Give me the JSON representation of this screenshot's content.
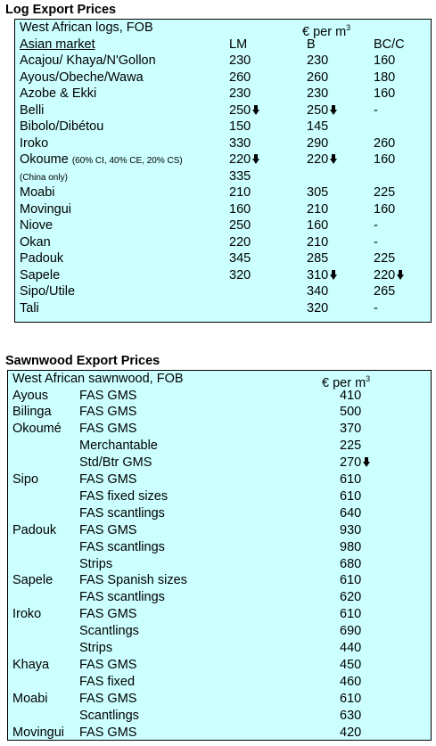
{
  "log_section": {
    "title": "Log Export Prices",
    "header": {
      "label": "West African logs, FOB",
      "unit": "€ per m",
      "unit_sup": "3"
    },
    "subheader": {
      "market": "Asian market",
      "col_lm": "LM",
      "col_b": "B",
      "col_bcc": "BC/C"
    },
    "rows": [
      {
        "name": "Acajou/ Khaya/N'Gollon",
        "lm": "230",
        "b": "230",
        "bcc": "160"
      },
      {
        "name": "Ayous/Obeche/Wawa",
        "lm": "260",
        "b": "260",
        "bcc": "180"
      },
      {
        "name": "Azobe & Ekki",
        "lm": "230",
        "b": "230",
        "bcc": "160"
      },
      {
        "name": "Belli",
        "lm": "250",
        "lm_arrow": "down-arrow-icon",
        "b": "250",
        "b_arrow": "down-arrow-icon",
        "bcc": "-"
      },
      {
        "name": "Bibolo/Dibétou",
        "lm": "150",
        "b": "145",
        "bcc": ""
      },
      {
        "name": "Iroko",
        "lm": "330",
        "b": "290",
        "bcc": "260"
      },
      {
        "name": "Okoume",
        "note": "(60% CI, 40% CE, 20% CS)",
        "lm": "220",
        "lm_arrow": "down-arrow-icon",
        "b": "220",
        "b_arrow": "down-arrow-icon",
        "bcc": "160"
      },
      {
        "name": "",
        "note": "(China only)",
        "lm": "335",
        "b": "",
        "bcc": ""
      },
      {
        "name": "Moabi",
        "lm": "210",
        "b": "305",
        "bcc": "225"
      },
      {
        "name": "Movingui",
        "lm": "160",
        "b": "210",
        "bcc": "160"
      },
      {
        "name": "Niove",
        "lm": "250",
        "b": "160",
        "bcc": "-"
      },
      {
        "name": "Okan",
        "lm": "220",
        "b": "210",
        "bcc": "-"
      },
      {
        "name": "Padouk",
        "lm": "345",
        "b": "285",
        "bcc": "225"
      },
      {
        "name": "Sapele",
        "lm": "320",
        "b": "310",
        "b_arrow": "down-arrow-icon",
        "bcc": "220",
        "bcc_arrow": "down-arrow-icon"
      },
      {
        "name": "Sipo/Utile",
        "lm": "",
        "b": "340",
        "bcc": "265"
      },
      {
        "name": "Tali",
        "lm": "",
        "b": "320",
        "bcc": "-"
      }
    ]
  },
  "sawn_section": {
    "title": "Sawnwood Export Prices",
    "header": {
      "label": "West African sawnwood, FOB",
      "unit": "€ per m",
      "unit_sup": "3"
    },
    "rows": [
      {
        "species": "Ayous",
        "grade": "FAS GMS",
        "price": "410"
      },
      {
        "species": "Bilinga",
        "grade": "FAS GMS",
        "price": "500"
      },
      {
        "species": "Okoumé",
        "grade": "FAS GMS",
        "price": "370"
      },
      {
        "species": "",
        "grade": "Merchantable",
        "price": "225"
      },
      {
        "species": "",
        "grade": "Std/Btr GMS",
        "price": "270",
        "arrow": "down-arrow-icon"
      },
      {
        "species": "Sipo",
        "grade": "FAS GMS",
        "price": "610"
      },
      {
        "species": "",
        "grade": "FAS fixed sizes",
        "price": "610"
      },
      {
        "species": "",
        "grade": "FAS scantlings",
        "price": "640"
      },
      {
        "species": "Padouk",
        "grade": "FAS GMS",
        "price": "930"
      },
      {
        "species": "",
        "grade": "FAS scantlings",
        "price": "980"
      },
      {
        "species": "",
        "grade": "Strips",
        "price": "680"
      },
      {
        "species": "Sapele",
        "grade": "FAS Spanish sizes",
        "price": "610"
      },
      {
        "species": "",
        "grade": "FAS scantlings",
        "price": "620"
      },
      {
        "species": "Iroko",
        "grade": "FAS GMS",
        "price": "610"
      },
      {
        "species": "",
        "grade": "Scantlings",
        "price": "690"
      },
      {
        "species": "",
        "grade": "Strips",
        "price": "440"
      },
      {
        "species": "Khaya",
        "grade": "FAS GMS",
        "price": "450"
      },
      {
        "species": "",
        "grade": "FAS fixed",
        "price": "460"
      },
      {
        "species": "Moabi",
        "grade": "FAS GMS",
        "price": "610"
      },
      {
        "species": "",
        "grade": "Scantlings",
        "price": "630"
      },
      {
        "species": "Movingui",
        "grade": "FAS GMS",
        "price": "420"
      }
    ]
  }
}
